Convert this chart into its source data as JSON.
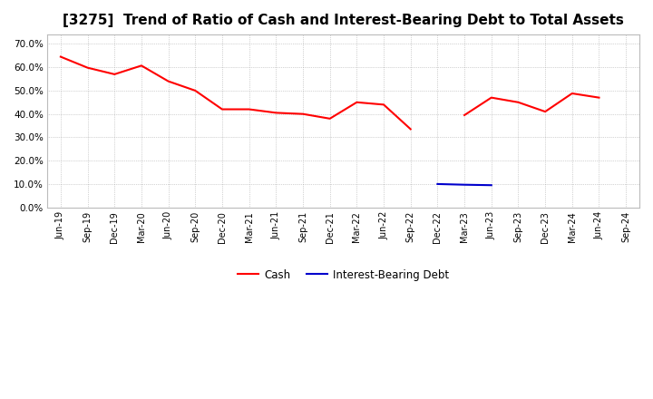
{
  "title": "[3275]  Trend of Ratio of Cash and Interest-Bearing Debt to Total Assets",
  "x_labels": [
    "Jun-19",
    "Sep-19",
    "Dec-19",
    "Mar-20",
    "Jun-20",
    "Sep-20",
    "Dec-20",
    "Mar-21",
    "Jun-21",
    "Sep-21",
    "Dec-21",
    "Mar-22",
    "Jun-22",
    "Sep-22",
    "Dec-22",
    "Mar-23",
    "Jun-23",
    "Sep-23",
    "Dec-23",
    "Mar-24",
    "Jun-24",
    "Sep-24"
  ],
  "cash_values": [
    0.645,
    0.598,
    0.57,
    0.607,
    0.54,
    0.5,
    0.42,
    0.42,
    0.405,
    0.4,
    0.38,
    0.45,
    0.44,
    0.335,
    null,
    0.395,
    0.47,
    0.45,
    0.41,
    0.488,
    0.47,
    null
  ],
  "debt_values": [
    null,
    null,
    null,
    null,
    null,
    null,
    null,
    null,
    null,
    null,
    null,
    null,
    null,
    null,
    0.1,
    0.097,
    0.095,
    null,
    null,
    null,
    null,
    null
  ],
  "cash_color": "#ff0000",
  "debt_color": "#0000cc",
  "ylim": [
    0.0,
    0.74
  ],
  "yticks": [
    0.0,
    0.1,
    0.2,
    0.3,
    0.4,
    0.5,
    0.6,
    0.7
  ],
  "background_color": "#ffffff",
  "plot_bg_color": "#ffffff",
  "grid_color": "#888888",
  "title_fontsize": 11,
  "legend_labels": [
    "Cash",
    "Interest-Bearing Debt"
  ],
  "line_width": 1.5
}
